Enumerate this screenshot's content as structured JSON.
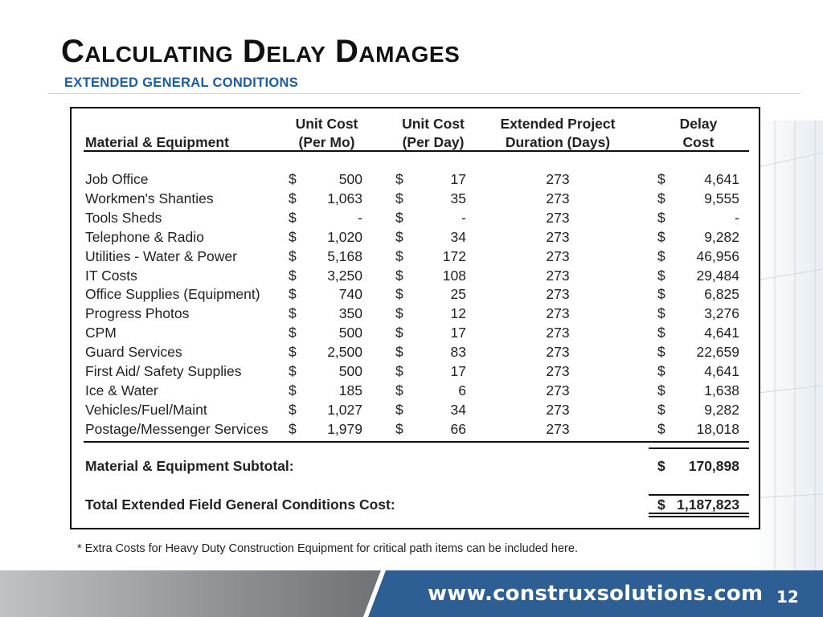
{
  "slide": {
    "title": "Calculating Delay Damages",
    "subtitle": "EXTENDED GENERAL CONDITIONS",
    "footnote": "* Extra Costs for Heavy Duty Construction Equipment for critical path items  can be included here.",
    "footer_url": "www.construxsolutions.com",
    "page_number": "12",
    "colors": {
      "subtitle": "#1f5c9a",
      "footer_band": "#2d5f94",
      "footer_gray": "#8a8d90"
    }
  },
  "table": {
    "columns": {
      "item": [
        "Material & Equipment"
      ],
      "unit_cost_month": [
        "Unit Cost",
        "(Per Mo)"
      ],
      "unit_cost_day": [
        "Unit Cost",
        "(Per Day)"
      ],
      "duration": [
        "Extended Project",
        "Duration (Days)"
      ],
      "delay_cost": [
        "Delay",
        "Cost"
      ]
    },
    "currency_symbol": "$",
    "rows": [
      {
        "item": "Job Office",
        "per_month": "500",
        "per_day": "17",
        "days": "273",
        "cost": "4,641"
      },
      {
        "item": "Workmen's Shanties",
        "per_month": "1,063",
        "per_day": "35",
        "days": "273",
        "cost": "9,555"
      },
      {
        "item": "Tools Sheds",
        "per_month": "-",
        "per_day": "-",
        "days": "273",
        "cost": "-"
      },
      {
        "item": "Telephone & Radio",
        "per_month": "1,020",
        "per_day": "34",
        "days": "273",
        "cost": "9,282"
      },
      {
        "item": "Utilities - Water & Power",
        "per_month": "5,168",
        "per_day": "172",
        "days": "273",
        "cost": "46,956"
      },
      {
        "item": "IT Costs",
        "per_month": "3,250",
        "per_day": "108",
        "days": "273",
        "cost": "29,484"
      },
      {
        "item": "Office Supplies (Equipment)",
        "per_month": "740",
        "per_day": "25",
        "days": "273",
        "cost": "6,825"
      },
      {
        "item": "Progress Photos",
        "per_month": "350",
        "per_day": "12",
        "days": "273",
        "cost": "3,276"
      },
      {
        "item": "CPM",
        "per_month": "500",
        "per_day": "17",
        "days": "273",
        "cost": "4,641"
      },
      {
        "item": "Guard Services",
        "per_month": "2,500",
        "per_day": "83",
        "days": "273",
        "cost": "22,659"
      },
      {
        "item": "First Aid/ Safety Supplies",
        "per_month": "500",
        "per_day": "17",
        "days": "273",
        "cost": "4,641"
      },
      {
        "item": "Ice & Water",
        "per_month": "185",
        "per_day": "6",
        "days": "273",
        "cost": "1,638"
      },
      {
        "item": "Vehicles/Fuel/Maint",
        "per_month": "1,027",
        "per_day": "34",
        "days": "273",
        "cost": "9,282"
      },
      {
        "item": "Postage/Messenger Services",
        "per_month": "1,979",
        "per_day": "66",
        "days": "273",
        "cost": "18,018"
      }
    ],
    "subtotal": {
      "label": "Material & Equipment Subtotal:",
      "value": "170,898"
    },
    "total": {
      "label": "Total Extended Field General Conditions Cost:",
      "value": "1,187,823"
    }
  }
}
